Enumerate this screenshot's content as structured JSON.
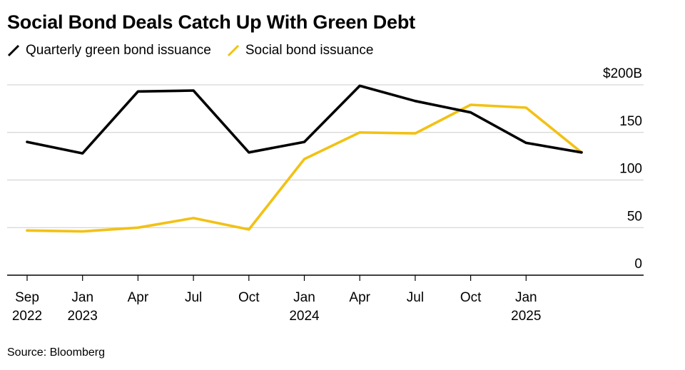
{
  "chart_data": {
    "type": "line",
    "title": "Social Bond Deals Catch Up With Green Debt",
    "x": [
      "2022-09",
      "2022-12",
      "2023-03",
      "2023-06",
      "2023-09",
      "2023-12",
      "2024-03",
      "2024-06",
      "2024-09",
      "2024-12",
      "2025-03"
    ],
    "series": [
      {
        "name": "Quarterly green bond issuance",
        "color": "#000000",
        "values": [
          140,
          128,
          193,
          194,
          129,
          140,
          199,
          183,
          171,
          139,
          129
        ]
      },
      {
        "name": "Social bond issuance",
        "color": "#f2c114",
        "values": [
          47,
          46,
          50,
          60,
          48,
          122,
          150,
          149,
          179,
          176,
          129
        ]
      }
    ],
    "x_ticks": [
      {
        "label": "Sep",
        "year": "2022",
        "x": "2022-09"
      },
      {
        "label": "Jan",
        "year": "2023",
        "x": "2022-12"
      },
      {
        "label": "Apr",
        "year": "",
        "x": "2023-03"
      },
      {
        "label": "Jul",
        "year": "",
        "x": "2023-06"
      },
      {
        "label": "Oct",
        "year": "",
        "x": "2023-09"
      },
      {
        "label": "Jan",
        "year": "2024",
        "x": "2023-12"
      },
      {
        "label": "Apr",
        "year": "",
        "x": "2024-03"
      },
      {
        "label": "Jul",
        "year": "",
        "x": "2024-06"
      },
      {
        "label": "Oct",
        "year": "",
        "x": "2024-09"
      },
      {
        "label": "Jan",
        "year": "2025",
        "x": "2024-12"
      }
    ],
    "y_ticks": [
      {
        "value": 0,
        "label": "0"
      },
      {
        "value": 50,
        "label": "50"
      },
      {
        "value": 100,
        "label": "100"
      },
      {
        "value": 150,
        "label": "150"
      },
      {
        "value": 200,
        "label": "$200B"
      }
    ],
    "ylim": [
      0,
      200
    ],
    "xlabel": "",
    "ylabel": "",
    "grid": true,
    "legend_position": "top-left"
  },
  "source": "Source: Bloomberg"
}
